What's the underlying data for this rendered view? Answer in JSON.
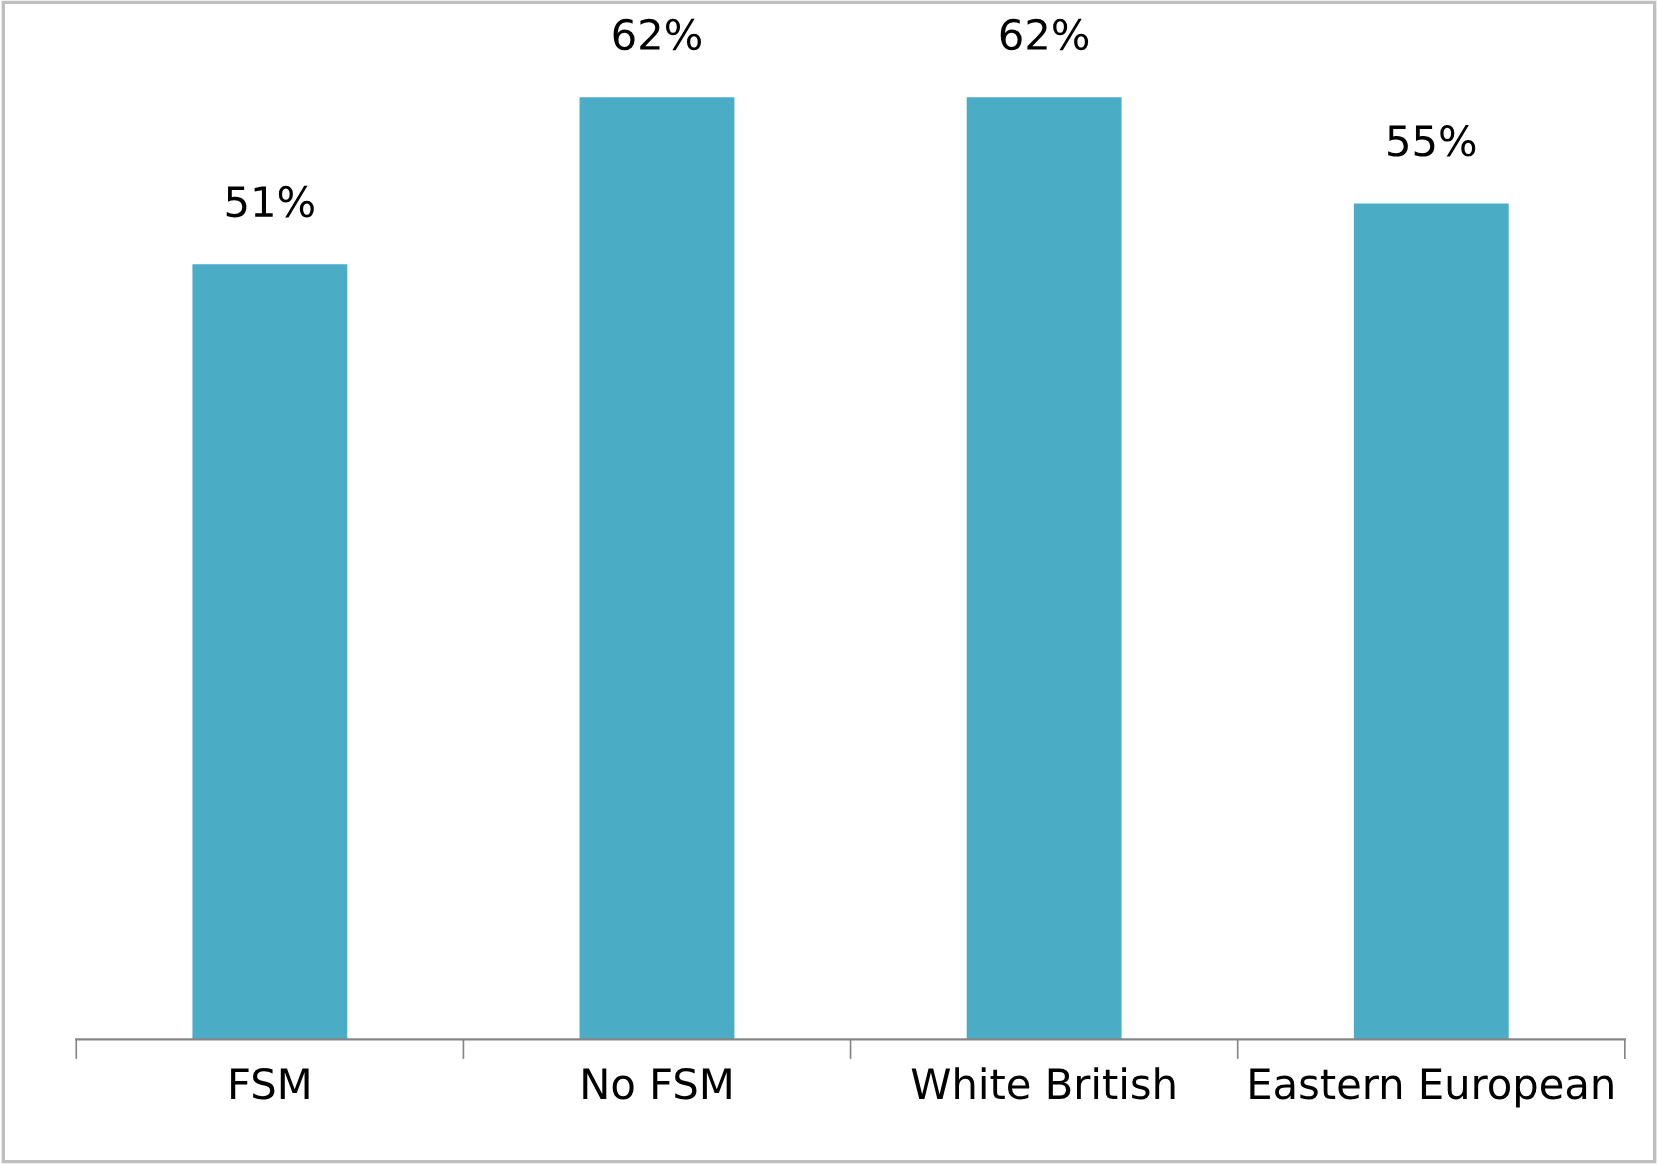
{
  "chart_data": {
    "type": "bar",
    "categories": [
      "FSM",
      "No FSM",
      "White British",
      "Eastern European"
    ],
    "values": [
      51,
      62,
      62,
      55
    ],
    "value_labels": [
      "51%",
      "62%",
      "62%",
      "55%"
    ],
    "color": "#4bacc6"
  }
}
